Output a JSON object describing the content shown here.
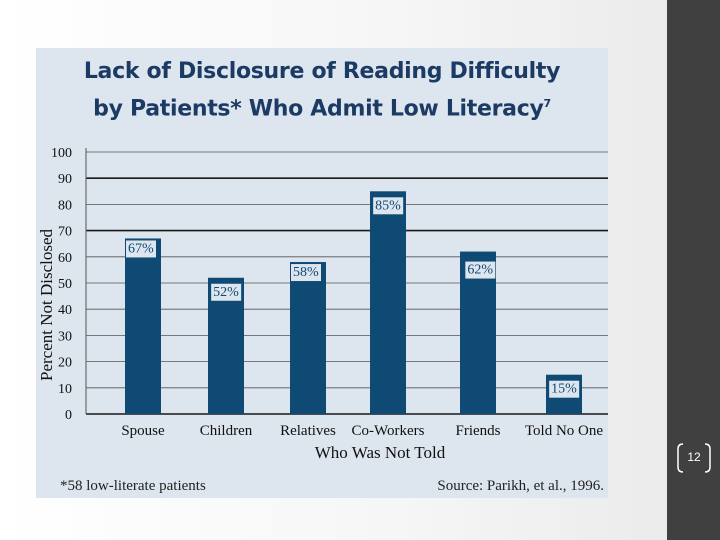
{
  "chart_data": {
    "type": "bar",
    "title_line1": "Lack of Disclosure of Reading Difficulty",
    "title_line2": "by Patients* Who Admit Low Literacy",
    "title_superscript": "7",
    "xlabel": "Who Was Not Told",
    "ylabel": "Percent Not Disclosed",
    "categories": [
      "Spouse",
      "Children",
      "Relatives",
      "Co-Workers",
      "Friends",
      "Told No One"
    ],
    "values": [
      67,
      52,
      58,
      85,
      62,
      15
    ],
    "data_labels": [
      "67%",
      "52%",
      "58%",
      "85%",
      "62%",
      "15%"
    ],
    "ylim": [
      0,
      100
    ],
    "yticks": [
      0,
      10,
      20,
      30,
      40,
      50,
      60,
      70,
      80,
      90,
      100
    ],
    "grid": true,
    "bar_color": "#0e4a73"
  },
  "footnote": "*58 low-literate patients",
  "source": "Source: Parikh, et al., 1996.",
  "page_number": "12"
}
